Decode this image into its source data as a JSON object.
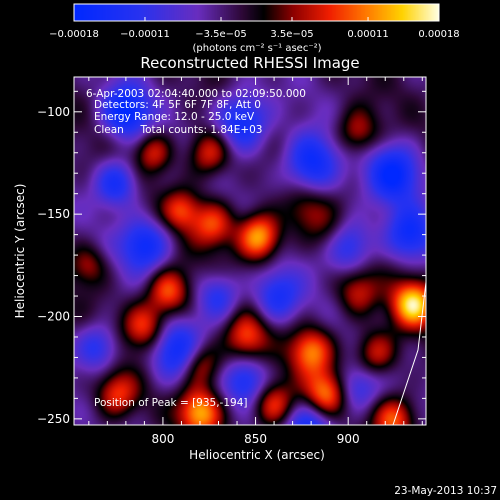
{
  "chart_data": {
    "type": "heatmap",
    "title": "Reconstructed RHESSI Image",
    "xlabel": "Heliocentric X (arcsec)",
    "ylabel": "Heliocentric Y (arcsec)",
    "xlim": [
      752,
      942
    ],
    "ylim": [
      -253,
      -83
    ],
    "x_ticks": [
      800,
      850,
      900
    ],
    "y_ticks": [
      -100,
      -150,
      -200,
      -250
    ],
    "x_tick_labels": [
      "800",
      "850",
      "900"
    ],
    "y_tick_labels": [
      "−100",
      "−150",
      "−200",
      "−250"
    ],
    "colorbar": {
      "range": [
        -0.00018,
        0.00018
      ],
      "ticks": [
        -0.00018,
        -0.00011,
        -3.5e-05,
        3.5e-05,
        0.00011,
        0.00018
      ],
      "tick_labels": [
        "−0.00018",
        "−0.00011",
        "−3.5e−05",
        "3.5e−05",
        "0.00011",
        "0.00018"
      ],
      "unit_label": "(photons cm⁻² s⁻¹ asec⁻²)"
    },
    "annotations": [
      "6-Apr-2003 02:04:40.000 to 02:09:50.000",
      "Detectors: 4F 5F 6F 7F 8F, Att 0",
      "Energy Range: 12.0 - 25.0 keV",
      "Clean     Total counts: 1.84E+03",
      "Position of Peak = [935,-194]"
    ],
    "peak": {
      "x": 935,
      "y": -194
    },
    "hotspots": [
      {
        "x": 935,
        "y": -194,
        "v": 0.00018,
        "s": 8
      },
      {
        "x": 852,
        "y": -161,
        "v": 0.00017,
        "s": 8
      },
      {
        "x": 827,
        "y": -155,
        "v": 0.00011,
        "s": 8
      },
      {
        "x": 810,
        "y": -148,
        "v": 0.0001,
        "s": 7
      },
      {
        "x": 825,
        "y": -120,
        "v": 0.00011,
        "s": 8
      },
      {
        "x": 795,
        "y": -120,
        "v": 9e-05,
        "s": 7
      },
      {
        "x": 905,
        "y": -110,
        "v": 9e-05,
        "s": 8
      },
      {
        "x": 803,
        "y": -188,
        "v": 0.00013,
        "s": 8
      },
      {
        "x": 790,
        "y": -205,
        "v": 0.00011,
        "s": 8
      },
      {
        "x": 820,
        "y": -223,
        "v": 0.00012,
        "s": 8
      },
      {
        "x": 820,
        "y": -247,
        "v": 0.00015,
        "s": 8
      },
      {
        "x": 845,
        "y": -210,
        "v": 0.00011,
        "s": 8
      },
      {
        "x": 880,
        "y": -217,
        "v": 0.00013,
        "s": 8
      },
      {
        "x": 915,
        "y": -218,
        "v": 0.0001,
        "s": 8
      },
      {
        "x": 888,
        "y": -238,
        "v": 0.00014,
        "s": 8
      },
      {
        "x": 860,
        "y": -243,
        "v": 0.00012,
        "s": 8
      },
      {
        "x": 775,
        "y": -238,
        "v": 0.00011,
        "s": 8
      },
      {
        "x": 905,
        "y": -188,
        "v": 9e-05,
        "s": 8
      },
      {
        "x": 877,
        "y": -148,
        "v": 6e-05,
        "s": 8
      },
      {
        "x": 760,
        "y": -175,
        "v": 7e-05,
        "s": 7
      },
      {
        "x": 925,
        "y": -250,
        "v": 0.00012,
        "s": 8
      },
      {
        "x": 890,
        "y": -160,
        "v": 5e-05,
        "s": 8
      }
    ],
    "coldspots": [
      {
        "x": 780,
        "y": -100,
        "v": -0.00015,
        "s": 9
      },
      {
        "x": 843,
        "y": -105,
        "v": -0.00014,
        "s": 10
      },
      {
        "x": 880,
        "y": -125,
        "v": -0.00014,
        "s": 10
      },
      {
        "x": 925,
        "y": -130,
        "v": -0.00014,
        "s": 10
      },
      {
        "x": 775,
        "y": -135,
        "v": -0.00012,
        "s": 8
      },
      {
        "x": 900,
        "y": -165,
        "v": -0.00012,
        "s": 9
      },
      {
        "x": 933,
        "y": -160,
        "v": -0.00012,
        "s": 9
      },
      {
        "x": 790,
        "y": -165,
        "v": -0.00013,
        "s": 9
      },
      {
        "x": 808,
        "y": -218,
        "v": -0.00014,
        "s": 10
      },
      {
        "x": 862,
        "y": -190,
        "v": -0.00011,
        "s": 9
      },
      {
        "x": 830,
        "y": -190,
        "v": -0.0001,
        "s": 8
      },
      {
        "x": 845,
        "y": -232,
        "v": -0.0001,
        "s": 8
      },
      {
        "x": 880,
        "y": -255,
        "v": -0.00012,
        "s": 10
      },
      {
        "x": 765,
        "y": -215,
        "v": -0.0001,
        "s": 8
      },
      {
        "x": 905,
        "y": -235,
        "v": -9e-05,
        "s": 8
      }
    ]
  },
  "footer": {
    "timestamp": "23-May-2013 10:37"
  }
}
